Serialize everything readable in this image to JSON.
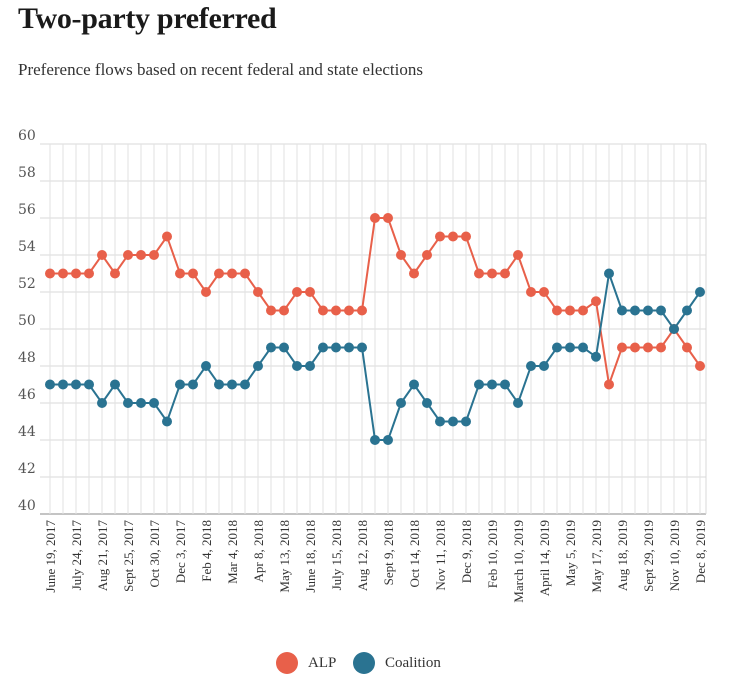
{
  "header": {
    "title": "Two-party preferred",
    "subtitle": "Preference flows based on recent federal and state elections"
  },
  "chart_data": {
    "type": "line",
    "title": "Two-party preferred",
    "subtitle": "Preference flows based on recent federal and state elections",
    "xlabel": "",
    "ylabel": "",
    "ylim": [
      40,
      60
    ],
    "yticks": [
      40,
      42,
      44,
      46,
      48,
      50,
      52,
      54,
      56,
      58,
      60
    ],
    "grid": true,
    "legend_position": "bottom-center",
    "tick_labels": [
      "June 19, 2017",
      "July 24, 2017",
      "Aug 21, 2017",
      "Sept 25, 2017",
      "Oct 30, 2017",
      "Dec 3, 2017",
      "Feb 4, 2018",
      "Mar 4, 2018",
      "Apr 8, 2018",
      "May 13, 2018",
      "June 18, 2018",
      "July 15, 2018",
      "Aug 12, 2018",
      "Sept 9, 2018",
      "Oct 14, 2018",
      "Nov 11, 2018",
      "Dec 9, 2018",
      "Feb 10, 2019",
      "March 10, 2019",
      "April 14, 2019",
      "May 5, 2019",
      "May 17, 2019",
      "Aug 18, 2019",
      "Sept 29, 2019",
      "Nov 10, 2019",
      "Dec 8, 2019"
    ],
    "series": [
      {
        "name": "ALP",
        "color": "#e8604a",
        "values": [
          53,
          53,
          53,
          53,
          54,
          53,
          54,
          54,
          54,
          55,
          53,
          53,
          52,
          53,
          53,
          53,
          52,
          51,
          51,
          52,
          52,
          51,
          51,
          51,
          51,
          56,
          56,
          54,
          53,
          54,
          55,
          55,
          55,
          53,
          53,
          53,
          54,
          52,
          52,
          51,
          51,
          51,
          51.5,
          47,
          49,
          49,
          49,
          49,
          50,
          49,
          48
        ]
      },
      {
        "name": "Coalition",
        "color": "#2a7391",
        "values": [
          47,
          47,
          47,
          47,
          46,
          47,
          46,
          46,
          46,
          45,
          47,
          47,
          48,
          47,
          47,
          47,
          48,
          49,
          49,
          48,
          48,
          49,
          49,
          49,
          49,
          44,
          44,
          46,
          47,
          46,
          45,
          45,
          45,
          47,
          47,
          47,
          46,
          48,
          48,
          49,
          49,
          49,
          48.5,
          53,
          51,
          51,
          51,
          51,
          50,
          51,
          52
        ]
      }
    ]
  }
}
